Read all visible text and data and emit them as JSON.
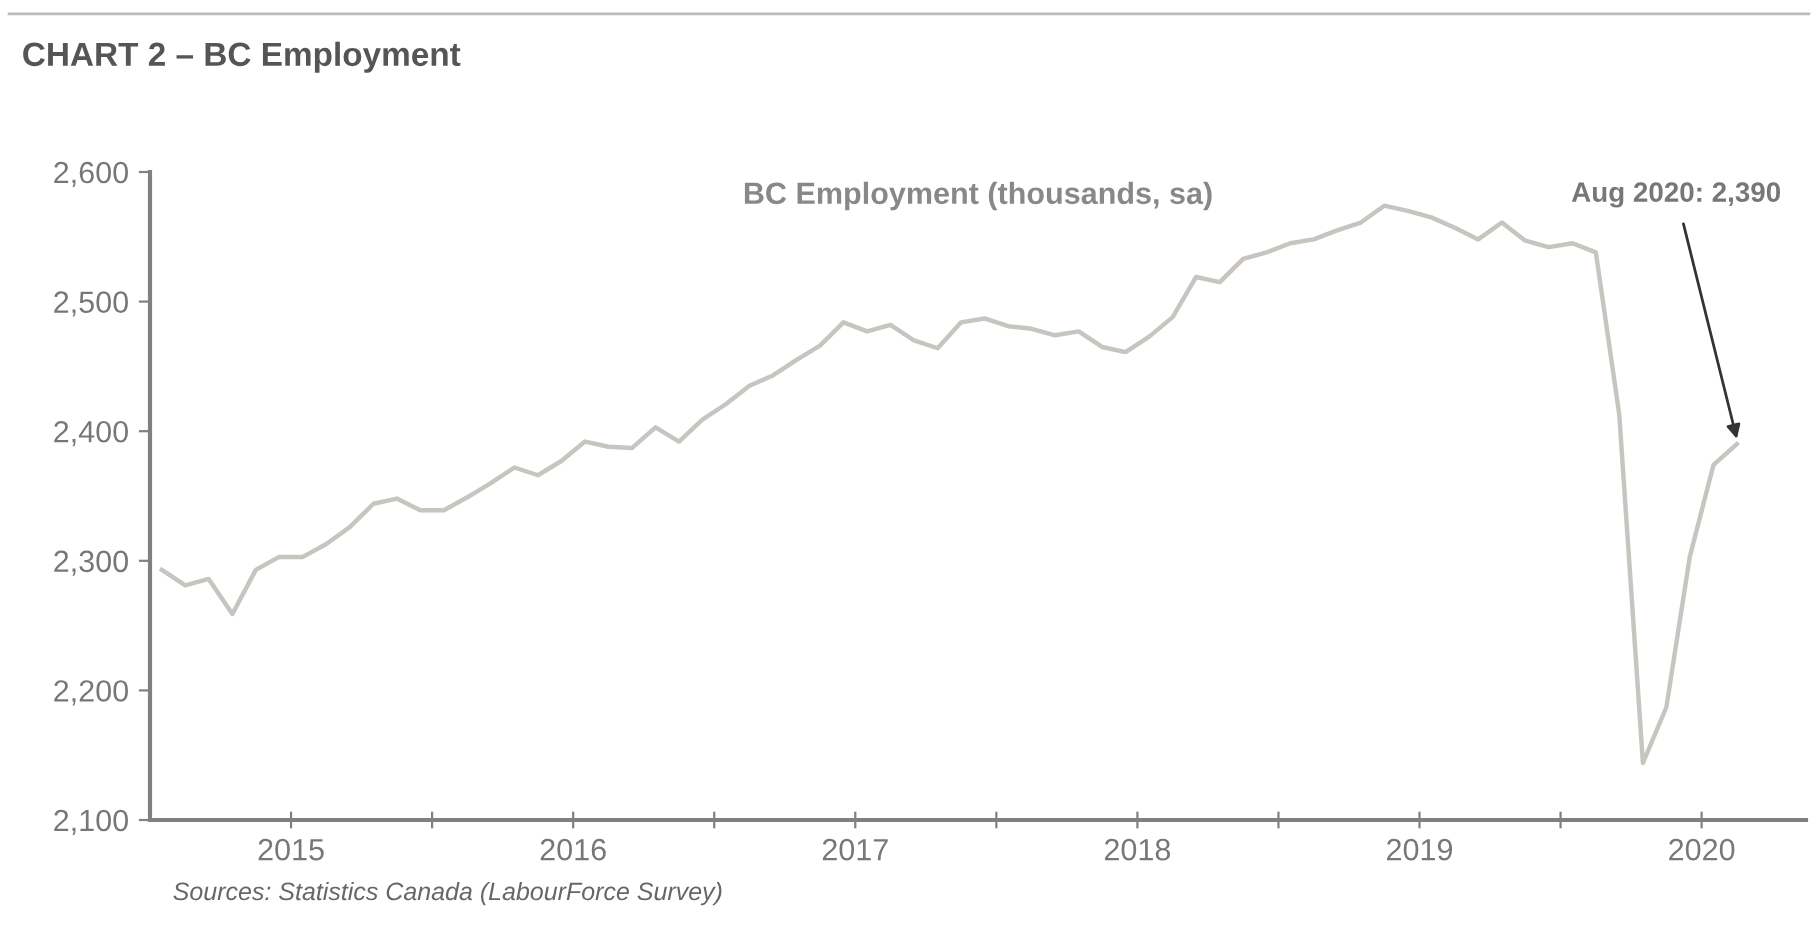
{
  "chart_data": {
    "type": "line",
    "title": "CHART 2 – BC Employment",
    "subtitle": "BC Employment (thousands, sa)",
    "annotations": [
      {
        "text": "Aug 2020: 2,390",
        "x": 2020.625,
        "y": 2390
      },
      "Sources: Statistics Canada (LabourForce Survey)"
    ],
    "x": [
      2015.042,
      2015.125,
      2015.208,
      2015.292,
      2015.375,
      2015.458,
      2015.542,
      2015.625,
      2015.708,
      2015.792,
      2015.875,
      2015.958,
      2016.042,
      2016.125,
      2016.208,
      2016.292,
      2016.375,
      2016.458,
      2016.542,
      2016.625,
      2016.708,
      2016.792,
      2016.875,
      2016.958,
      2017.042,
      2017.125,
      2017.208,
      2017.292,
      2017.375,
      2017.458,
      2017.542,
      2017.625,
      2017.708,
      2017.792,
      2017.875,
      2017.958,
      2018.042,
      2018.125,
      2018.208,
      2018.292,
      2018.375,
      2018.458,
      2018.542,
      2018.625,
      2018.708,
      2018.792,
      2018.875,
      2018.958,
      2019.042,
      2019.125,
      2019.208,
      2019.292,
      2019.375,
      2019.458,
      2019.542,
      2019.625,
      2019.708,
      2019.792,
      2019.875,
      2019.958,
      2020.042,
      2020.125,
      2020.208,
      2020.292,
      2020.375,
      2020.458,
      2020.542,
      2020.625
    ],
    "series": [
      {
        "color": "#c8c4c0",
        "values": [
          2293,
          2281,
          2286,
          2259,
          2293,
          2303,
          2303,
          2313,
          2326,
          2344,
          2348,
          2339,
          2339,
          2349,
          2360,
          2372,
          2366,
          2377,
          2392,
          2388,
          2387,
          2403,
          2392,
          2409,
          2421,
          2435,
          2443,
          2455,
          2466,
          2484,
          2477,
          2482,
          2470,
          2464,
          2484,
          2487,
          2481,
          2479,
          2474,
          2477,
          2465,
          2461,
          2473,
          2488,
          2519,
          2515,
          2533,
          2538,
          2545,
          2548,
          2555,
          2561,
          2574,
          2570,
          2565,
          2557,
          2548,
          2561,
          2547,
          2542,
          2545,
          2538,
          2413,
          2144,
          2187,
          2303,
          2374,
          2390
        ]
      }
    ],
    "xlim": [
      2015.0,
      2020.87
    ],
    "xticks": [
      {
        "value": 2015.5,
        "label": "2015"
      },
      {
        "value": 2016,
        "label": null
      },
      {
        "value": 2016.5,
        "label": "2016"
      },
      {
        "value": 2017,
        "label": null
      },
      {
        "value": 2017.5,
        "label": "2017"
      },
      {
        "value": 2018,
        "label": null
      },
      {
        "value": 2018.5,
        "label": "2018"
      },
      {
        "value": 2019,
        "label": null
      },
      {
        "value": 2019.5,
        "label": "2019"
      },
      {
        "value": 2020,
        "label": null
      },
      {
        "value": 2020.5,
        "label": "2020"
      }
    ],
    "ylim": [
      2100,
      2600
    ],
    "yticks": [
      {
        "value": 2100,
        "label": "2,100"
      },
      {
        "value": 2200,
        "label": "2,200"
      },
      {
        "value": 2300,
        "label": "2,300"
      },
      {
        "value": 2400,
        "label": "2,400"
      },
      {
        "value": 2500,
        "label": "2,500"
      },
      {
        "value": 2600,
        "label": "2,600"
      }
    ],
    "grid": false,
    "marker": "none",
    "line_style": "solid"
  }
}
